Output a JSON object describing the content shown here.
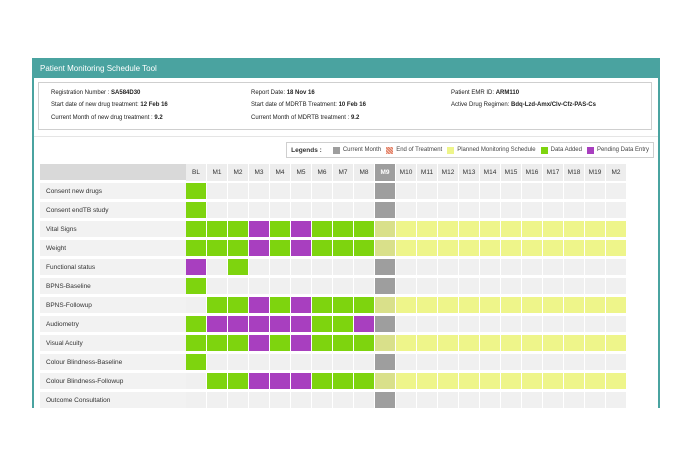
{
  "panel": {
    "title": "Patient Monitoring Schedule Tool"
  },
  "info": {
    "registration_label": "Registration Number : ",
    "registration_value": "SA584D30",
    "report_date_label": "Report Date: ",
    "report_date_value": "18 Nov 16",
    "emr_label": "Patient EMR ID: ",
    "emr_value": "ARM110",
    "start_new_label": "Start date of new drug treatment: ",
    "start_new_value": "12 Feb 16",
    "start_mdrtb_label": "Start date of MDRTB Treatment: ",
    "start_mdrtb_value": "10 Feb 16",
    "regimen_label": "Active Drug Regimen: ",
    "regimen_value": "Bdq-Lzd-Amx/Clv-Cfz-PAS-Cs",
    "month_new_label": "Current Month of new drug treatment : ",
    "month_new_value": "9.2",
    "month_mdrtb_label": "Current Month of MDRTB treatment : ",
    "month_mdrtb_value": "9.2"
  },
  "legend": {
    "title": "Legends :",
    "items": [
      {
        "label": "Current Month",
        "color": "#9e9e9e"
      },
      {
        "label": "End of Treatment",
        "color": "#e07a5f"
      },
      {
        "label": "Planned Monitoring Schedule",
        "color": "#eef58a"
      },
      {
        "label": "Data Added",
        "color": "#7ed40e"
      },
      {
        "label": "Pending Data Entry",
        "color": "#a83fbf"
      }
    ]
  },
  "colors": {
    "G": "#7ed40e",
    "P": "#a83fbf",
    "Y": "#eef58a",
    "C": "#9e9e9e",
    "L": "#d9e08a",
    "E": "#f0f0f0"
  },
  "columns": [
    "BL",
    "M1",
    "M2",
    "M3",
    "M4",
    "M5",
    "M6",
    "M7",
    "M8",
    "M9",
    "M10",
    "M11",
    "M12",
    "M13",
    "M14",
    "M15",
    "M16",
    "M17",
    "M18",
    "M19",
    "M2"
  ],
  "current_column": 9,
  "rows": [
    {
      "label": "Consent new drugs",
      "cells": "GEEEEEEEECEEEEEEEEEEE"
    },
    {
      "label": "Consent endTB study",
      "cells": "GEEEEEEEECEEEEEEEEEEE"
    },
    {
      "label": "Vital Signs",
      "cells": "GGGPGPGGGLYYYYYYYYYYY"
    },
    {
      "label": "Weight",
      "cells": "GGGPGPGGGLYYYYYYYYYYY"
    },
    {
      "label": "Functional status",
      "cells": "PEGEEEEEECEEEEEEEEEEE"
    },
    {
      "label": "BPNS-Baseline",
      "cells": "GEEEEEEEECEEEEEEEEEEE"
    },
    {
      "label": "BPNS-Followup",
      "cells": "EGGPGPGGGLYYYYYYYYYYY"
    },
    {
      "label": "Audiometry",
      "cells": "GPPPPPGGPCEEEEEEEEEEE"
    },
    {
      "label": "Visual Acuity",
      "cells": "GGGPGPGGGLYYYYYYYYYYY"
    },
    {
      "label": "Colour Blindness-Baseline",
      "cells": "GEEEEEEEECEEEEEEEEEEE"
    },
    {
      "label": "Colour Blindness-Followup",
      "cells": "EGGPPPGGGLYYYYYYYYYYY"
    },
    {
      "label": "Outcome Consultation",
      "cells": "EEEEEEEEECEEEEEEEEEEE"
    }
  ]
}
